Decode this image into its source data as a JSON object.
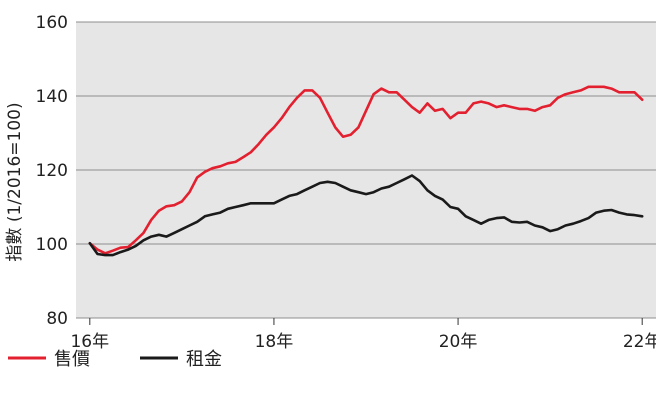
{
  "chart_data": {
    "type": "line",
    "ylabel": "指數 (1/2016=100)",
    "xlabel": "",
    "ylim": [
      80,
      160
    ],
    "xlim": [
      2016,
      2022
    ],
    "yticks": [
      80,
      100,
      120,
      140,
      160
    ],
    "xticks": [
      {
        "value": 2016,
        "label": "16年"
      },
      {
        "value": 2018,
        "label": "18年"
      },
      {
        "value": 2020,
        "label": "20年"
      },
      {
        "value": 2022,
        "label": "22年"
      }
    ],
    "grid": "horizontal",
    "legend": "bottom-left",
    "series": [
      {
        "name": "售價",
        "color": "#e3202f",
        "x": [
          2016.0,
          2016.083,
          2016.167,
          2016.25,
          2016.333,
          2016.417,
          2016.5,
          2016.583,
          2016.667,
          2016.75,
          2016.833,
          2016.917,
          2017.0,
          2017.083,
          2017.167,
          2017.25,
          2017.333,
          2017.417,
          2017.5,
          2017.583,
          2017.667,
          2017.75,
          2017.833,
          2017.917,
          2018.0,
          2018.083,
          2018.167,
          2018.25,
          2018.333,
          2018.417,
          2018.5,
          2018.583,
          2018.667,
          2018.75,
          2018.833,
          2018.917,
          2019.0,
          2019.083,
          2019.167,
          2019.25,
          2019.333,
          2019.417,
          2019.5,
          2019.583,
          2019.667,
          2019.75,
          2019.833,
          2019.917,
          2020.0,
          2020.083,
          2020.167,
          2020.25,
          2020.333,
          2020.417,
          2020.5,
          2020.583,
          2020.667,
          2020.75,
          2020.833,
          2020.917,
          2021.0,
          2021.083,
          2021.167,
          2021.25,
          2021.333,
          2021.417,
          2021.5,
          2021.583,
          2021.667,
          2021.75,
          2021.833,
          2021.917,
          2022.0
        ],
        "values": [
          100.2,
          98.5,
          97.5,
          98.2,
          99.0,
          99.2,
          101.0,
          103.0,
          106.5,
          109.0,
          110.2,
          110.5,
          111.5,
          114.0,
          118.0,
          119.5,
          120.5,
          121.0,
          121.8,
          122.2,
          123.5,
          124.8,
          127.0,
          129.5,
          131.5,
          134.0,
          137.0,
          139.5,
          141.5,
          141.5,
          139.5,
          135.5,
          131.5,
          129.0,
          129.5,
          131.5,
          136.0,
          140.5,
          142.0,
          141.0,
          141.0,
          139.0,
          137.0,
          135.5,
          138.0,
          136.0,
          136.5,
          134.0,
          135.5,
          135.5,
          138.0,
          138.5,
          138.0,
          137.0,
          137.5,
          137.0,
          136.5,
          136.5,
          136.0,
          137.0,
          137.5,
          139.5,
          140.5,
          141.0,
          141.5,
          142.5,
          142.5,
          142.5,
          142.0,
          141.0,
          141.0,
          141.0,
          139.0
        ]
      },
      {
        "name": "租金",
        "color": "#1a1a1a",
        "x": [
          2016.0,
          2016.083,
          2016.167,
          2016.25,
          2016.333,
          2016.417,
          2016.5,
          2016.583,
          2016.667,
          2016.75,
          2016.833,
          2016.917,
          2017.0,
          2017.083,
          2017.167,
          2017.25,
          2017.333,
          2017.417,
          2017.5,
          2017.583,
          2017.667,
          2017.75,
          2017.833,
          2017.917,
          2018.0,
          2018.083,
          2018.167,
          2018.25,
          2018.333,
          2018.417,
          2018.5,
          2018.583,
          2018.667,
          2018.75,
          2018.833,
          2018.917,
          2019.0,
          2019.083,
          2019.167,
          2019.25,
          2019.333,
          2019.417,
          2019.5,
          2019.583,
          2019.667,
          2019.75,
          2019.833,
          2019.917,
          2020.0,
          2020.083,
          2020.167,
          2020.25,
          2020.333,
          2020.417,
          2020.5,
          2020.583,
          2020.667,
          2020.75,
          2020.833,
          2020.917,
          2021.0,
          2021.083,
          2021.167,
          2021.25,
          2021.333,
          2021.417,
          2021.5,
          2021.583,
          2021.667,
          2021.75,
          2021.833,
          2021.917,
          2022.0
        ],
        "values": [
          100.2,
          97.3,
          97.0,
          97.0,
          97.8,
          98.5,
          99.5,
          101.0,
          102.0,
          102.5,
          102.0,
          103.0,
          104.0,
          105.0,
          106.0,
          107.5,
          108.0,
          108.5,
          109.5,
          110.0,
          110.5,
          111.0,
          111.0,
          111.0,
          111.0,
          112.0,
          113.0,
          113.5,
          114.5,
          115.5,
          116.5,
          116.8,
          116.5,
          115.5,
          114.5,
          114.0,
          113.5,
          114.0,
          115.0,
          115.5,
          116.5,
          117.5,
          118.5,
          117.0,
          114.5,
          113.0,
          112.0,
          110.0,
          109.5,
          107.5,
          106.5,
          105.5,
          106.5,
          107.0,
          107.2,
          106.0,
          105.8,
          106.0,
          105.0,
          104.5,
          103.5,
          104.0,
          105.0,
          105.5,
          106.2,
          107.0,
          108.5,
          109.0,
          109.2,
          108.5,
          108.0,
          107.8,
          107.5
        ]
      }
    ]
  }
}
